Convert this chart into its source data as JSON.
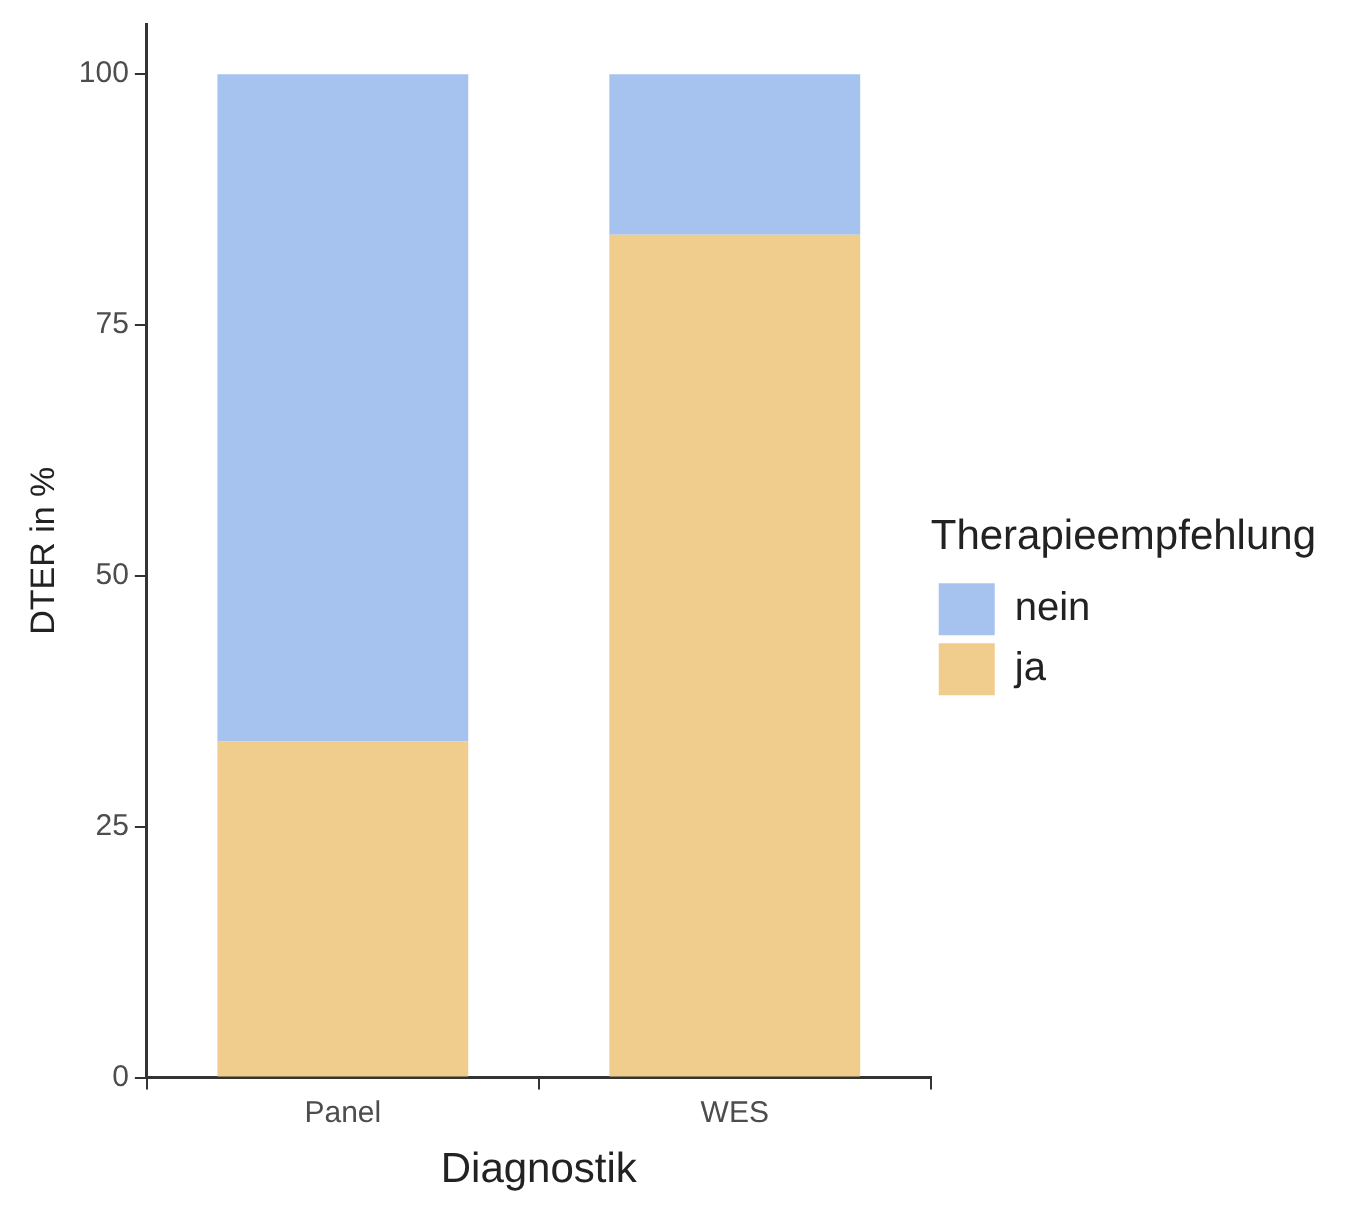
{
  "chart_data": {
    "type": "bar",
    "stacked": true,
    "xlabel": "Diagnostik",
    "ylabel": "DTER in %",
    "legend_title": "Therapieempfehlung",
    "legend": "right",
    "grid": false,
    "categories": [
      "Panel",
      "WES"
    ],
    "series": [
      {
        "name": "ja",
        "color": "#f0cd8c",
        "values": [
          33.5,
          84
        ]
      },
      {
        "name": "nein",
        "color": "#a6c3f0",
        "values": [
          66.5,
          16
        ]
      }
    ],
    "ylim": [
      0,
      105
    ],
    "yticks": [
      0,
      25,
      50,
      75,
      100
    ]
  }
}
